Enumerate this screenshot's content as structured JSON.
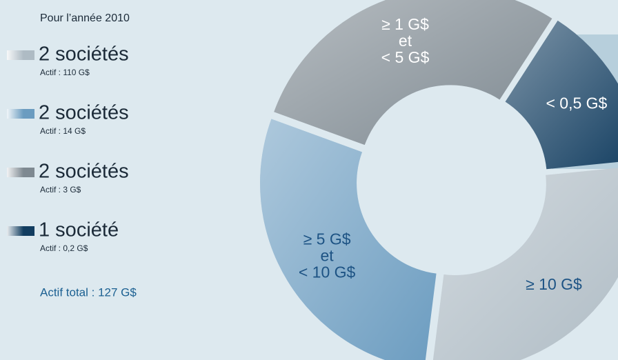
{
  "chart_data": {
    "type": "donut",
    "subtitle": "Pour l’année 2010",
    "categories": [
      [
        "≥ 10 G$"
      ],
      [
        "≥ 5 G$",
        "et",
        "< 10 G$"
      ],
      [
        "≥ 1 G$",
        "et",
        "< 5 G$"
      ],
      [
        "< 0,5 G$"
      ]
    ],
    "values": [
      2,
      2,
      2,
      1
    ],
    "value_labels": [
      "2 sociétés",
      "2 sociétés",
      "2 sociétés",
      "1 société"
    ],
    "details": [
      "Actif : 110 G$",
      "Actif : 14 G$",
      "Actif : 3 G$",
      "Actif : 0,2 G$"
    ],
    "colors": [
      "#aebbc4",
      "#6b9cc0",
      "#7e8991",
      "#123d60"
    ],
    "label_colors": [
      "#1d5384",
      "#1d5384",
      "#ffffff",
      "#ffffff"
    ],
    "total": "Actif total : 127 G$"
  }
}
